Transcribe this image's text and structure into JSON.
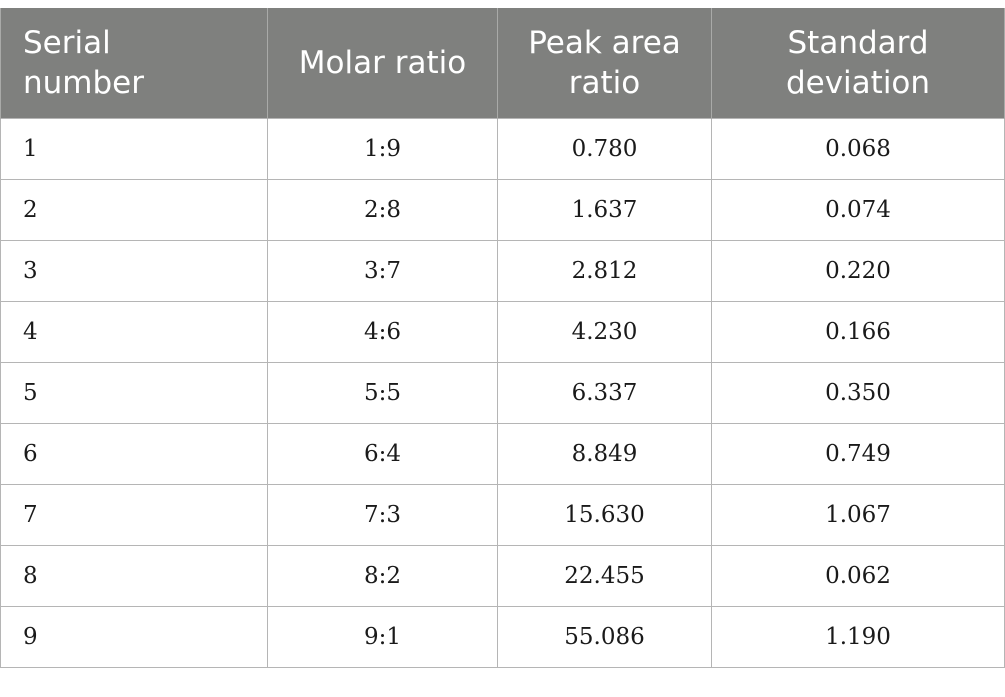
{
  "table": {
    "headers": [
      "Serial\nnumber",
      "Molar ratio",
      "Peak area\nratio",
      "Standard\ndeviation"
    ],
    "rows": [
      [
        "1",
        "1:9",
        "0.780",
        "0.068"
      ],
      [
        "2",
        "2:8",
        "1.637",
        "0.074"
      ],
      [
        "3",
        "3:7",
        "2.812",
        "0.220"
      ],
      [
        "4",
        "4:6",
        "4.230",
        "0.166"
      ],
      [
        "5",
        "5:5",
        "6.337",
        "0.350"
      ],
      [
        "6",
        "6:4",
        "8.849",
        "0.749"
      ],
      [
        "7",
        "7:3",
        "15.630",
        "1.067"
      ],
      [
        "8",
        "8:2",
        "22.455",
        "0.062"
      ],
      [
        "9",
        "9:1",
        "55.086",
        "1.190"
      ]
    ]
  },
  "colors": {
    "header_bg": "#7f807e",
    "header_text": "#ffffff",
    "grid": "#b5b5b5"
  }
}
